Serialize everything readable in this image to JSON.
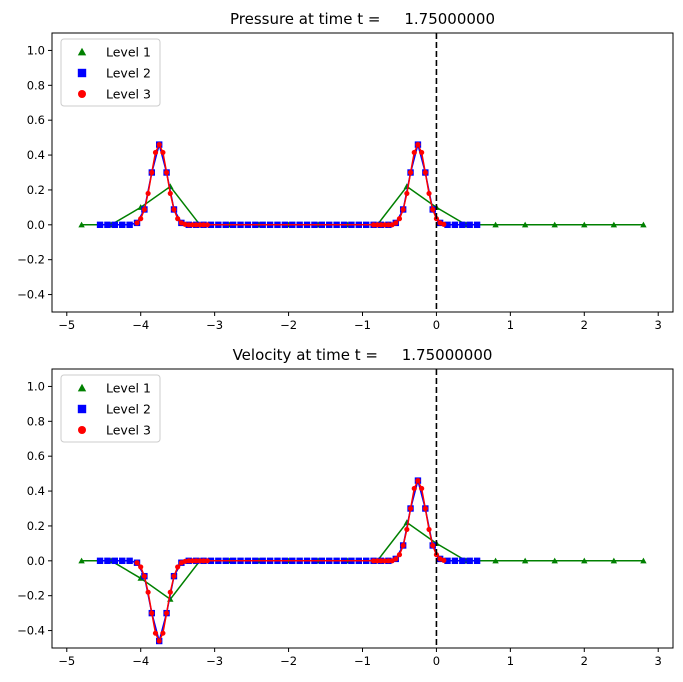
{
  "chart_data": [
    {
      "type": "line",
      "title": "Pressure at time t =     1.75000000",
      "xlim": [
        -5.2,
        3.2
      ],
      "ylim": [
        -0.5,
        1.1
      ],
      "xticks": [
        -5,
        -4,
        -3,
        -2,
        -1,
        0,
        1,
        2,
        3
      ],
      "yticks": [
        -0.4,
        -0.2,
        0.0,
        0.2,
        0.4,
        0.6,
        0.8,
        1.0
      ],
      "vline_x": 0,
      "legend": "top-left",
      "series": [
        {
          "name": "Level 1",
          "color": "#008000",
          "marker": "triangle",
          "x": [
            -4.8,
            -4.4,
            -4.0,
            -3.6,
            -3.2,
            -2.8,
            -2.4,
            -2.0,
            -1.6,
            -1.2,
            -0.8,
            -0.4,
            0.0,
            0.4,
            0.8,
            1.2,
            1.6,
            2.0,
            2.4,
            2.8
          ],
          "y": [
            0,
            0,
            0.1,
            0.22,
            0,
            0,
            0,
            0,
            0,
            0,
            0,
            0.22,
            0.1,
            0,
            0,
            0,
            0,
            0,
            0,
            0
          ]
        },
        {
          "name": "Level 2",
          "color": "#0000ff",
          "marker": "square",
          "x": [
            -4.55,
            -4.45,
            -4.35,
            -4.25,
            -4.15,
            -4.05,
            -3.95,
            -3.85,
            -3.75,
            -3.65,
            -3.55,
            -3.45,
            -3.35,
            -3.25,
            -3.15,
            -3.05,
            -2.95,
            -2.85,
            -2.75,
            -2.65,
            -2.55,
            -2.45,
            -2.35,
            -2.25,
            -2.15,
            -2.05,
            -1.95,
            -1.85,
            -1.75,
            -1.65,
            -1.55,
            -1.45,
            -1.35,
            -1.25,
            -1.15,
            -1.05,
            -0.95,
            -0.85,
            -0.75,
            -0.65,
            -0.55,
            -0.45,
            -0.35,
            -0.25,
            -0.15,
            -0.05,
            0.05,
            0.15,
            0.25,
            0.35,
            0.45,
            0.55
          ],
          "y": [
            0,
            0,
            0,
            0,
            0,
            0.011,
            0.088,
            0.3,
            0.46,
            0.3,
            0.088,
            0.011,
            0,
            0,
            0,
            0,
            0,
            0,
            0,
            0,
            0,
            0,
            0,
            0,
            0,
            0,
            0,
            0,
            0,
            0,
            0,
            0,
            0,
            0,
            0,
            0,
            0,
            0,
            0,
            0,
            0.011,
            0.088,
            0.3,
            0.46,
            0.3,
            0.088,
            0.011,
            0,
            0,
            0,
            0,
            0
          ]
        },
        {
          "name": "Level 3",
          "color": "#ff0000",
          "marker": "circle",
          "x": [
            -4.05,
            -4.0,
            -3.95,
            -3.9,
            -3.85,
            -3.8,
            -3.75,
            -3.7,
            -3.65,
            -3.6,
            -3.55,
            -3.5,
            -3.45,
            -3.4,
            -3.35,
            -3.3,
            -3.25,
            -3.2,
            -3.15,
            -3.1,
            -0.85,
            -0.8,
            -0.75,
            -0.7,
            -0.65,
            -0.6,
            -0.55,
            -0.5,
            -0.45,
            -0.4,
            -0.35,
            -0.3,
            -0.25,
            -0.2,
            -0.15,
            -0.1,
            -0.05,
            0.0,
            0.05,
            0.1
          ],
          "y": [
            0.011,
            0.035,
            0.088,
            0.18,
            0.3,
            0.415,
            0.46,
            0.415,
            0.3,
            0.18,
            0.088,
            0.035,
            0.011,
            0.003,
            0,
            0,
            0,
            0,
            0,
            0,
            0,
            0,
            0,
            0,
            0,
            0,
            0.011,
            0.035,
            0.088,
            0.18,
            0.3,
            0.415,
            0.46,
            0.415,
            0.3,
            0.18,
            0.088,
            0.035,
            0.011,
            0.003
          ]
        }
      ]
    },
    {
      "type": "line",
      "title": "Velocity at time t =     1.75000000",
      "xlim": [
        -5.2,
        3.2
      ],
      "ylim": [
        -0.5,
        1.1
      ],
      "xticks": [
        -5,
        -4,
        -3,
        -2,
        -1,
        0,
        1,
        2,
        3
      ],
      "yticks": [
        -0.4,
        -0.2,
        0.0,
        0.2,
        0.4,
        0.6,
        0.8,
        1.0
      ],
      "vline_x": 0,
      "legend": "top-left",
      "series": [
        {
          "name": "Level 1",
          "color": "#008000",
          "marker": "triangle",
          "x": [
            -4.8,
            -4.4,
            -4.0,
            -3.6,
            -3.2,
            -2.8,
            -2.4,
            -2.0,
            -1.6,
            -1.2,
            -0.8,
            -0.4,
            0.0,
            0.4,
            0.8,
            1.2,
            1.6,
            2.0,
            2.4,
            2.8
          ],
          "y": [
            0,
            0,
            -0.1,
            -0.22,
            0,
            0,
            0,
            0,
            0,
            0,
            0,
            0.22,
            0.1,
            0,
            0,
            0,
            0,
            0,
            0,
            0
          ]
        },
        {
          "name": "Level 2",
          "color": "#0000ff",
          "marker": "square",
          "x": [
            -4.55,
            -4.45,
            -4.35,
            -4.25,
            -4.15,
            -4.05,
            -3.95,
            -3.85,
            -3.75,
            -3.65,
            -3.55,
            -3.45,
            -3.35,
            -3.25,
            -3.15,
            -3.05,
            -2.95,
            -2.85,
            -2.75,
            -2.65,
            -2.55,
            -2.45,
            -2.35,
            -2.25,
            -2.15,
            -2.05,
            -1.95,
            -1.85,
            -1.75,
            -1.65,
            -1.55,
            -1.45,
            -1.35,
            -1.25,
            -1.15,
            -1.05,
            -0.95,
            -0.85,
            -0.75,
            -0.65,
            -0.55,
            -0.45,
            -0.35,
            -0.25,
            -0.15,
            -0.05,
            0.05,
            0.15,
            0.25,
            0.35,
            0.45,
            0.55
          ],
          "y": [
            0,
            0,
            0,
            0,
            0,
            -0.011,
            -0.088,
            -0.3,
            -0.46,
            -0.3,
            -0.088,
            -0.011,
            0,
            0,
            0,
            0,
            0,
            0,
            0,
            0,
            0,
            0,
            0,
            0,
            0,
            0,
            0,
            0,
            0,
            0,
            0,
            0,
            0,
            0,
            0,
            0,
            0,
            0,
            0,
            0,
            0.011,
            0.088,
            0.3,
            0.46,
            0.3,
            0.088,
            0.011,
            0,
            0,
            0,
            0,
            0
          ]
        },
        {
          "name": "Level 3",
          "color": "#ff0000",
          "marker": "circle",
          "x": [
            -4.05,
            -4.0,
            -3.95,
            -3.9,
            -3.85,
            -3.8,
            -3.75,
            -3.7,
            -3.65,
            -3.6,
            -3.55,
            -3.5,
            -3.45,
            -3.4,
            -3.35,
            -3.3,
            -3.25,
            -3.2,
            -3.15,
            -3.1,
            -0.85,
            -0.8,
            -0.75,
            -0.7,
            -0.65,
            -0.6,
            -0.55,
            -0.5,
            -0.45,
            -0.4,
            -0.35,
            -0.3,
            -0.25,
            -0.2,
            -0.15,
            -0.1,
            -0.05,
            0.0,
            0.05,
            0.1
          ],
          "y": [
            -0.011,
            -0.035,
            -0.088,
            -0.18,
            -0.3,
            -0.415,
            -0.46,
            -0.415,
            -0.3,
            -0.18,
            -0.088,
            -0.035,
            -0.011,
            -0.003,
            0,
            0,
            0,
            0,
            0,
            0,
            0,
            0,
            0,
            0,
            0,
            0,
            0.011,
            0.035,
            0.088,
            0.18,
            0.3,
            0.415,
            0.46,
            0.415,
            0.3,
            0.18,
            0.088,
            0.035,
            0.011,
            0.003
          ]
        }
      ]
    }
  ]
}
